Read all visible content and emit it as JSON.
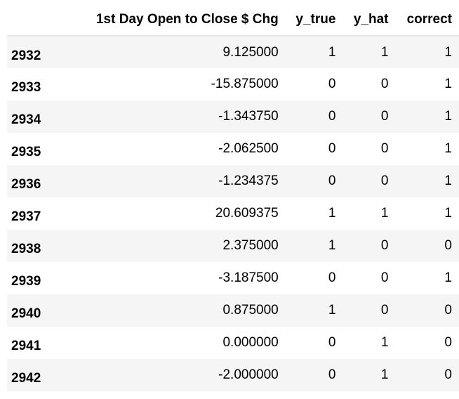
{
  "table": {
    "columns": [
      "",
      "1st Day Open to Close $ Chg",
      "y_true",
      "y_hat",
      "correct"
    ],
    "rows": [
      {
        "index": "2932",
        "chg": "9.125000",
        "y_true": "1",
        "y_hat": "1",
        "correct": "1"
      },
      {
        "index": "2933",
        "chg": "-15.875000",
        "y_true": "0",
        "y_hat": "0",
        "correct": "1"
      },
      {
        "index": "2934",
        "chg": "-1.343750",
        "y_true": "0",
        "y_hat": "0",
        "correct": "1"
      },
      {
        "index": "2935",
        "chg": "-2.062500",
        "y_true": "0",
        "y_hat": "0",
        "correct": "1"
      },
      {
        "index": "2936",
        "chg": "-1.234375",
        "y_true": "0",
        "y_hat": "0",
        "correct": "1"
      },
      {
        "index": "2937",
        "chg": "20.609375",
        "y_true": "1",
        "y_hat": "1",
        "correct": "1"
      },
      {
        "index": "2938",
        "chg": "2.375000",
        "y_true": "1",
        "y_hat": "0",
        "correct": "0"
      },
      {
        "index": "2939",
        "chg": "-3.187500",
        "y_true": "0",
        "y_hat": "0",
        "correct": "1"
      },
      {
        "index": "2940",
        "chg": "0.875000",
        "y_true": "1",
        "y_hat": "0",
        "correct": "0"
      },
      {
        "index": "2941",
        "chg": "0.000000",
        "y_true": "0",
        "y_hat": "1",
        "correct": "0"
      },
      {
        "index": "2942",
        "chg": "-2.000000",
        "y_true": "0",
        "y_hat": "1",
        "correct": "0"
      }
    ]
  },
  "colors": {
    "stripe": "#f5f5f5",
    "header_rule": "#e6e6e6",
    "text": "#000000"
  }
}
